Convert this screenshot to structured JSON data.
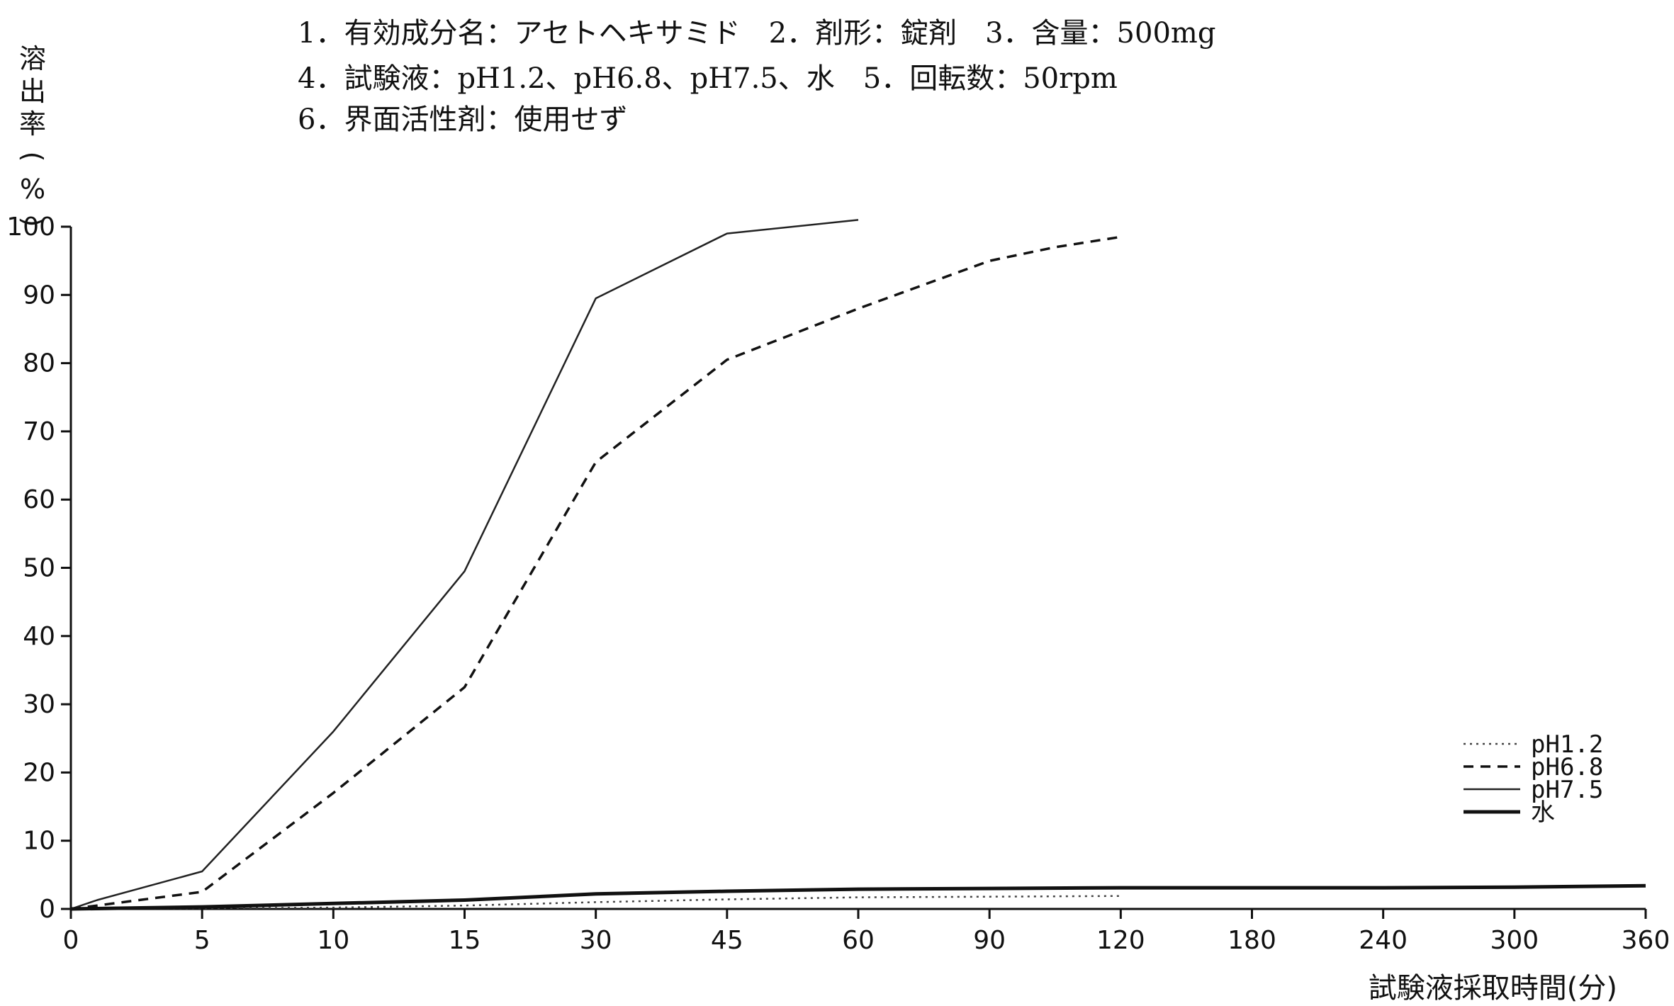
{
  "header": {
    "line1": "1．有効成分名：アセトヘキサミド　2．剤形：錠剤　3．含量：500mg",
    "line2": "4．試験液：pH1.2、pH6.8、pH7.5、水　5．回転数：50rpm",
    "line3": "6．界面活性剤：使用せず"
  },
  "chart_data": {
    "type": "line",
    "title": "",
    "ylabel": "溶出率(%)",
    "xlabel": "試験液採取時間(分)",
    "x": [
      0,
      5,
      10,
      15,
      30,
      45,
      60,
      90,
      120,
      180,
      240,
      300,
      360
    ],
    "x_tick_labels": [
      "0",
      "5",
      "10",
      "15",
      "30",
      "45",
      "60",
      "90",
      "120",
      "180",
      "240",
      "300",
      "360"
    ],
    "x_scale": "categorical-evenly-spaced",
    "ylim": [
      0,
      100
    ],
    "y_ticks": [
      0,
      10,
      20,
      30,
      40,
      50,
      60,
      70,
      80,
      90,
      100
    ],
    "grid": false,
    "legend_position": "bottom-right",
    "series": [
      {
        "name": "pH1.2",
        "style": "dotted",
        "color": "#444444",
        "x": [
          0,
          5,
          10,
          15,
          30,
          45,
          60,
          90,
          120
        ],
        "values": [
          0,
          0.1,
          0.2,
          0.5,
          1.0,
          1.4,
          1.7,
          1.8,
          1.9
        ]
      },
      {
        "name": "pH6.8",
        "style": "dashed",
        "color": "#111111",
        "x": [
          0,
          1,
          5,
          10,
          15,
          30,
          45,
          60,
          90,
          105,
          120
        ],
        "values": [
          0,
          0.5,
          2.5,
          17,
          32.5,
          65.5,
          80.5,
          88,
          95,
          97,
          98.5
        ]
      },
      {
        "name": "pH7.5",
        "style": "thin",
        "color": "#222222",
        "x": [
          0,
          1,
          5,
          10,
          15,
          30,
          45,
          60
        ],
        "values": [
          0,
          1.3,
          5.5,
          26,
          49.5,
          89.5,
          99,
          101
        ]
      },
      {
        "name": "水",
        "style": "solid-thick",
        "color": "#111111",
        "x": [
          0,
          5,
          10,
          15,
          30,
          45,
          60,
          90,
          120,
          180,
          240,
          300,
          360
        ],
        "values": [
          0,
          0.3,
          0.8,
          1.3,
          2.2,
          2.6,
          2.9,
          3.0,
          3.1,
          3.1,
          3.1,
          3.2,
          3.4
        ]
      }
    ]
  }
}
